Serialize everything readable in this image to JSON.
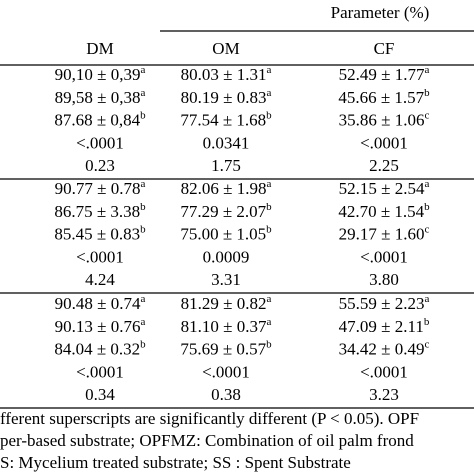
{
  "header": {
    "parameter": "Parameter (%)",
    "columns": [
      "DM",
      "OM",
      "CF"
    ]
  },
  "groups": [
    {
      "rows": [
        [
          {
            "text": "90,10 ± 0,39",
            "sup": "a"
          },
          {
            "text": "80.03 ± 1.31",
            "sup": "a"
          },
          {
            "text": "52.49 ± 1.77",
            "sup": "a"
          }
        ],
        [
          {
            "text": "89,58 ± 0,38",
            "sup": "a"
          },
          {
            "text": "80.19 ± 0.83",
            "sup": "a"
          },
          {
            "text": "45.66 ± 1.57",
            "sup": "b"
          }
        ],
        [
          {
            "text": "87.68 ± 0,84",
            "sup": "b"
          },
          {
            "text": "77.54 ± 1.68",
            "sup": "b"
          },
          {
            "text": "35.86 ± 1.06",
            "sup": "c"
          }
        ],
        [
          "<.0001",
          "0.0341",
          "<.0001"
        ],
        [
          "0.23",
          "1.75",
          "2.25"
        ]
      ]
    },
    {
      "rows": [
        [
          {
            "text": "90.77 ± 0.78",
            "sup": "a"
          },
          {
            "text": "82.06 ± 1.98",
            "sup": "a"
          },
          {
            "text": "52.15 ± 2.54",
            "sup": "a"
          }
        ],
        [
          {
            "text": "86.75 ± 3.38",
            "sup": "b"
          },
          {
            "text": "77.29 ± 2.07",
            "sup": "b"
          },
          {
            "text": "42.70 ± 1.54",
            "sup": "b"
          }
        ],
        [
          {
            "text": "85.45 ± 0.83",
            "sup": "b"
          },
          {
            "text": "75.00 ± 1.05",
            "sup": "b"
          },
          {
            "text": "29.17 ± 1.60",
            "sup": "c"
          }
        ],
        [
          "<.0001",
          "0.0009",
          "<.0001"
        ],
        [
          "4.24",
          "3.31",
          "3.80"
        ]
      ]
    },
    {
      "rows": [
        [
          {
            "text": "90.48 ± 0.74",
            "sup": "a"
          },
          {
            "text": "81.29 ± 0.82",
            "sup": "a"
          },
          {
            "text": "55.59 ± 2.23",
            "sup": "a"
          }
        ],
        [
          {
            "text": "90.13 ± 0.76",
            "sup": "a"
          },
          {
            "text": "81.10 ± 0.37",
            "sup": "a"
          },
          {
            "text": "47.09 ± 2.11",
            "sup": "b"
          }
        ],
        [
          {
            "text": "84.04 ± 0.32",
            "sup": "b"
          },
          {
            "text": "75.69 ± 0.57",
            "sup": "b"
          },
          {
            "text": "34.42 ± 0.49",
            "sup": "c"
          }
        ],
        [
          "<.0001",
          "<.0001",
          "<.0001"
        ],
        [
          "0.34",
          "0.38",
          "3.23"
        ]
      ]
    }
  ],
  "footnotes": [
    "fferent superscripts are significantly different  (P < 0.05). OPF",
    "per-based substrate; OPFMZ: Combination of oil palm frond",
    "S: Mycelium treated substrate; SS : Spent Substrate"
  ]
}
